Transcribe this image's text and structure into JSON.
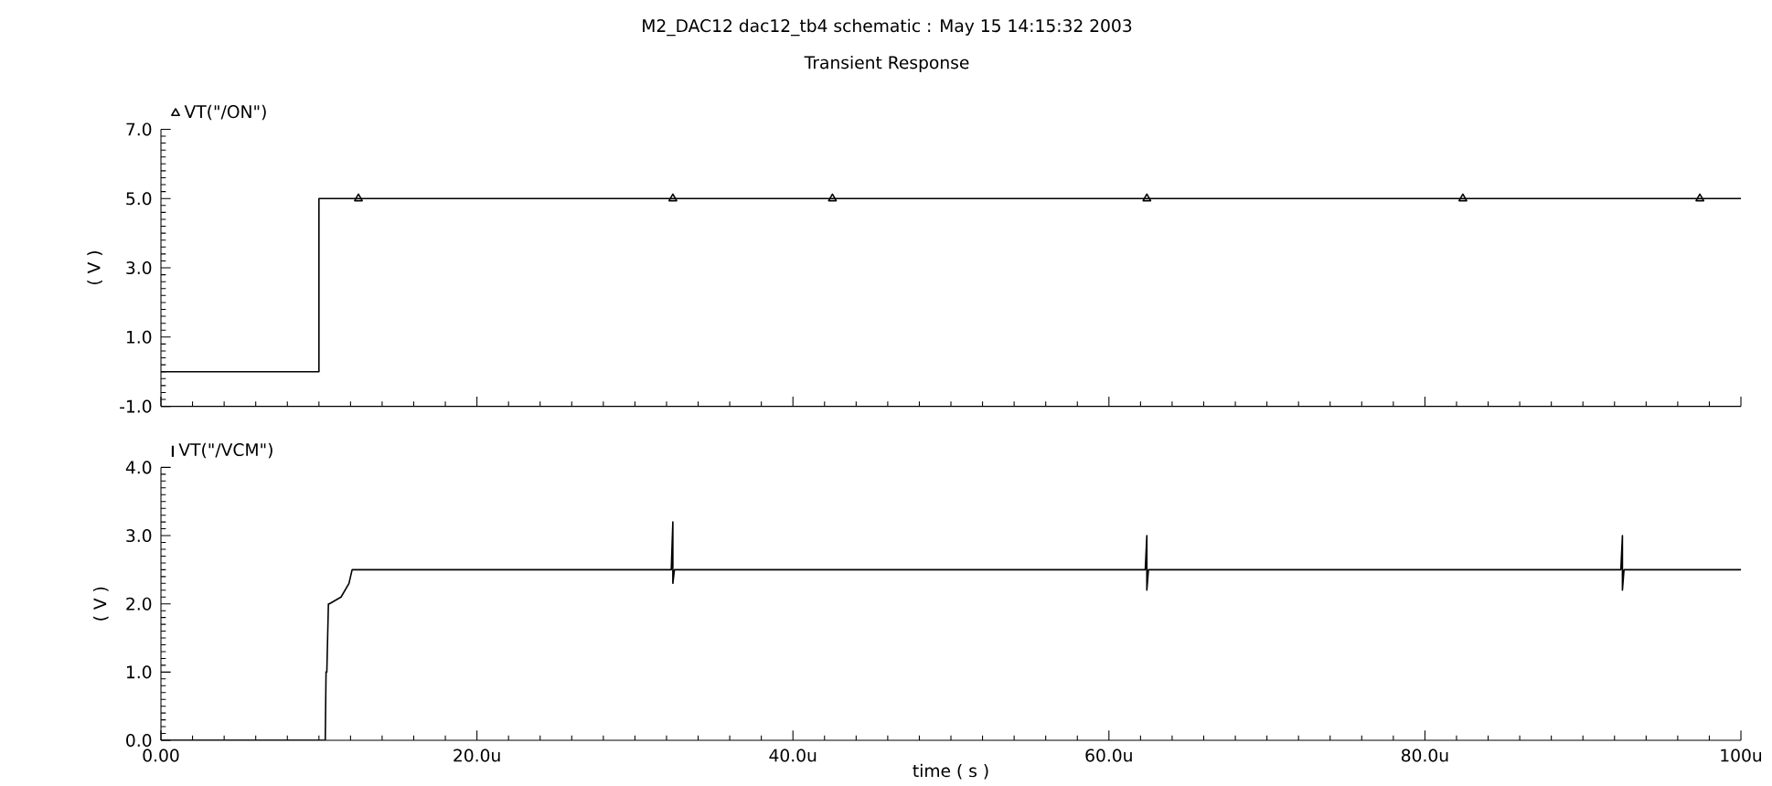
{
  "chart_data": [
    {
      "type": "line",
      "title": "M2_DAC12 dac12_tb4 schematic : May 15 14:15:32 2003",
      "subtitle": "Transient Response",
      "ylabel": "( V )",
      "xlim": [
        0,
        100
      ],
      "ylim": [
        -1.0,
        7.0
      ],
      "xticks": [
        {
          "value": 0,
          "label": null
        },
        {
          "value": 20,
          "label": null
        },
        {
          "value": 40,
          "label": null
        },
        {
          "value": 60,
          "label": null
        },
        {
          "value": 80,
          "label": null
        },
        {
          "value": 100,
          "label": null
        }
      ],
      "yticks": [
        {
          "value": -1.0,
          "label": "-1.0"
        },
        {
          "value": 1.0,
          "label": "1.0"
        },
        {
          "value": 3.0,
          "label": "3.0"
        },
        {
          "value": 5.0,
          "label": "5.0"
        },
        {
          "value": 7.0,
          "label": "7.0"
        }
      ],
      "tick_labels": "y",
      "legend": "top left",
      "grid": false,
      "series": [
        {
          "name": "VT(\"/ON\")",
          "color": "#000000",
          "x": [
            0,
            10,
            10,
            100
          ],
          "values": [
            0.0,
            0.0,
            5.0,
            5.0
          ]
        },
        {
          "type": "scatter",
          "color": "#000000",
          "marker": "triangle",
          "x": [
            12.5,
            32.4,
            42.5,
            62.4,
            82.4,
            97.4
          ],
          "values": [
            5.0,
            5.0,
            5.0,
            5.0,
            5.0,
            5.0
          ]
        }
      ]
    },
    {
      "type": "line",
      "xlabel": "time ( s )",
      "ylabel": "( V )",
      "xlim": [
        0,
        100
      ],
      "ylim": [
        0.0,
        4.0
      ],
      "xticks": [
        {
          "value": 0,
          "label": "0.00"
        },
        {
          "value": 20,
          "label": "20.0u"
        },
        {
          "value": 40,
          "label": "40.0u"
        },
        {
          "value": 60,
          "label": "60.0u"
        },
        {
          "value": 80,
          "label": "80.0u"
        },
        {
          "value": 100,
          "label": "100u"
        }
      ],
      "yticks": [
        {
          "value": 0.0,
          "label": "0.0"
        },
        {
          "value": 1.0,
          "label": "1.0"
        },
        {
          "value": 2.0,
          "label": "2.0"
        },
        {
          "value": 3.0,
          "label": "3.0"
        },
        {
          "value": 4.0,
          "label": "4.0"
        }
      ],
      "legend": "top left",
      "grid": false,
      "series": [
        {
          "name": "VT(\"/VCM\")",
          "color": "#000000",
          "x": [
            0,
            10.4,
            10.45,
            10.5,
            10.6,
            10.65,
            11.4,
            11.9,
            12.1,
            32.3,
            32.4,
            32.4,
            32.5,
            62.3,
            62.4,
            62.4,
            62.5,
            92.4,
            92.5,
            92.5,
            92.6,
            100
          ],
          "values": [
            0.0,
            0.0,
            1.0,
            1.0,
            2.0,
            2.0,
            2.1,
            2.3,
            2.5,
            2.5,
            3.2,
            2.3,
            2.5,
            2.5,
            3.0,
            2.2,
            2.5,
            2.5,
            3.0,
            2.2,
            2.5,
            2.5
          ]
        }
      ]
    }
  ]
}
